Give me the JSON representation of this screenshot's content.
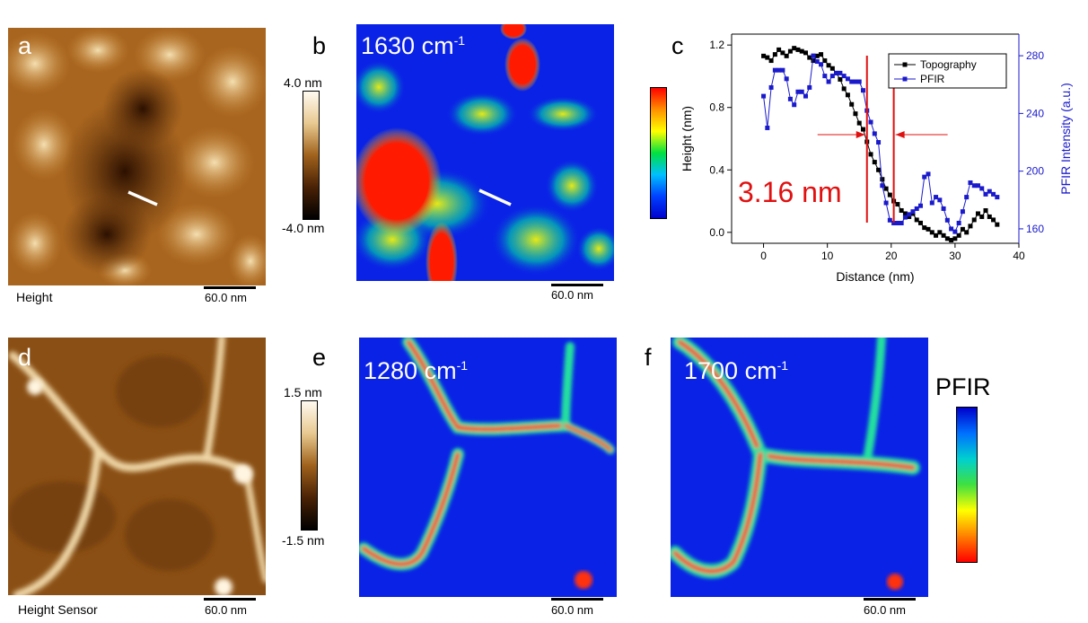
{
  "panels": {
    "a": {
      "letter": "a",
      "caption": "Height",
      "scalebar": "60.0 nm"
    },
    "b": {
      "letter": "b",
      "wavenumber": "1630 cm",
      "wavenumber_unit_sup": "-1",
      "scalebar": "60.0 nm"
    },
    "c": {
      "letter": "c"
    },
    "d": {
      "letter": "d",
      "caption": "Height Sensor",
      "scalebar": "60.0 nm"
    },
    "e": {
      "letter": "e",
      "wavenumber": "1280 cm",
      "wavenumber_unit_sup": "-1",
      "scalebar": "60.0 nm"
    },
    "f": {
      "letter": "f",
      "wavenumber": "1700 cm",
      "wavenumber_unit_sup": "-1",
      "scalebar": "60.0 nm"
    }
  },
  "colorbars": {
    "height_top": {
      "max": "4.0 nm",
      "min": "-4.0 nm"
    },
    "height_bottom": {
      "max": "1.5 nm",
      "min": "-1.5 nm"
    },
    "pfir_bottom": {
      "title": "PFIR"
    }
  },
  "colors": {
    "afm_dark": "#2a1200",
    "afm_mid": "#9a5a18",
    "afm_light": "#f3e4c4",
    "pfir_blue": "#0a22e6",
    "pfir_red": "#ff1a00",
    "topo_series": "#000000",
    "pfir_series": "#1a1acc",
    "annotation_red": "#e01010"
  },
  "chart_data": {
    "type": "line",
    "xlabel": "Distance (nm)",
    "ylabel": "Height (nm)",
    "y2label": "PFIR Intensity (a.u.)",
    "xlim": [
      -5,
      40
    ],
    "ylim": [
      -0.07,
      1.27
    ],
    "y2lim": [
      150,
      295
    ],
    "xticks": [
      0,
      10,
      20,
      30,
      40
    ],
    "yticks": [
      0.0,
      0.4,
      0.8,
      1.2
    ],
    "y2ticks": [
      160,
      200,
      240,
      280
    ],
    "annotation": "3.16 nm",
    "vlines": [
      16.2,
      20.4
    ],
    "series": [
      {
        "name": "Topography",
        "axis": "left",
        "x": [
          0,
          0.6,
          1.2,
          1.8,
          2.4,
          3,
          3.6,
          4.2,
          4.8,
          5.4,
          6,
          6.6,
          7.2,
          7.8,
          8.4,
          9,
          9.6,
          10.2,
          10.8,
          11.4,
          12,
          12.6,
          13.2,
          13.8,
          14.4,
          15,
          15.6,
          16.2,
          16.8,
          17.4,
          18,
          18.6,
          19.2,
          19.8,
          20.4,
          21,
          21.6,
          22.2,
          22.8,
          23.4,
          24,
          24.6,
          25.2,
          25.8,
          26.4,
          27,
          27.6,
          28.2,
          28.8,
          29.4,
          30,
          30.6,
          31.2,
          31.8,
          32.4,
          33,
          33.6,
          34.2,
          34.8,
          35.4,
          36,
          36.6
        ],
        "y": [
          1.13,
          1.12,
          1.1,
          1.14,
          1.17,
          1.15,
          1.13,
          1.16,
          1.18,
          1.17,
          1.16,
          1.15,
          1.12,
          1.1,
          1.13,
          1.14,
          1.1,
          1.07,
          1.05,
          1.02,
          0.98,
          0.92,
          0.88,
          0.82,
          0.76,
          0.7,
          0.66,
          0.58,
          0.5,
          0.45,
          0.4,
          0.34,
          0.28,
          0.24,
          0.2,
          0.18,
          0.14,
          0.12,
          0.1,
          0.12,
          0.08,
          0.06,
          0.03,
          0.02,
          0.0,
          -0.02,
          0.0,
          -0.02,
          -0.04,
          -0.05,
          -0.04,
          -0.02,
          0.02,
          0.0,
          0.04,
          0.08,
          0.12,
          0.1,
          0.14,
          0.1,
          0.08,
          0.05
        ]
      },
      {
        "name": "PFIR",
        "axis": "right",
        "x": [
          0,
          0.6,
          1.2,
          1.8,
          2.4,
          3,
          3.6,
          4.2,
          4.8,
          5.4,
          6,
          6.6,
          7.2,
          7.8,
          8.4,
          9,
          9.6,
          10.2,
          10.8,
          11.4,
          12,
          12.6,
          13.2,
          13.8,
          14.4,
          15,
          15.6,
          16.2,
          16.8,
          17.4,
          18,
          18.6,
          19.2,
          19.8,
          20.4,
          21,
          21.6,
          22.2,
          22.8,
          23.4,
          24,
          24.6,
          25.2,
          25.8,
          26.4,
          27,
          27.6,
          28.2,
          28.8,
          29.4,
          30,
          30.6,
          31.2,
          31.8,
          32.4,
          33,
          33.6,
          34.2,
          34.8,
          35.4,
          36,
          36.6
        ],
        "y": [
          252,
          230,
          258,
          270,
          270,
          270,
          264,
          250,
          246,
          255,
          255,
          252,
          258,
          280,
          276,
          274,
          266,
          262,
          266,
          268,
          268,
          266,
          264,
          262,
          262,
          262,
          256,
          242,
          234,
          226,
          220,
          190,
          178,
          166,
          164,
          164,
          164,
          168,
          170,
          172,
          174,
          176,
          196,
          198,
          178,
          182,
          180,
          174,
          166,
          160,
          158,
          164,
          172,
          182,
          192,
          190,
          190,
          188,
          184,
          186,
          184,
          182
        ]
      }
    ]
  }
}
